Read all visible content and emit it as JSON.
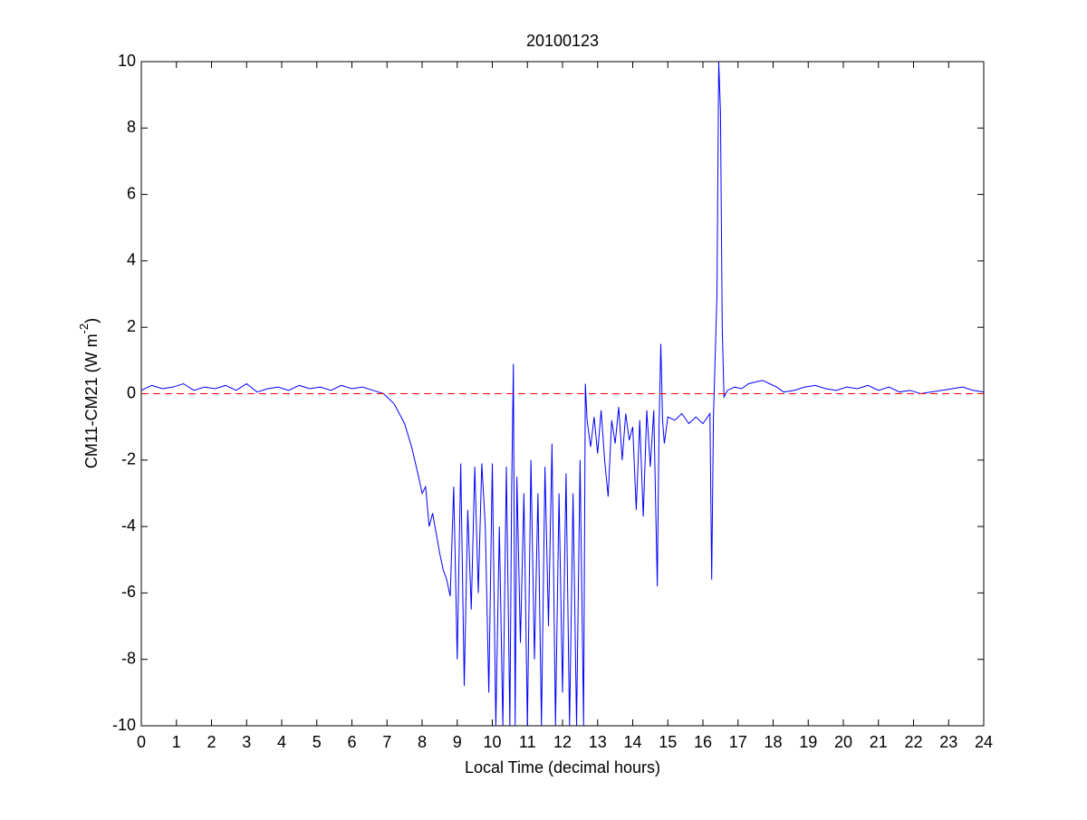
{
  "chart_data": {
    "type": "line",
    "title": "20100123",
    "xlabel": "Local Time (decimal hours)",
    "ylabel": [
      "CM11-CM21 (W m",
      "-2",
      ")"
    ],
    "xlim": [
      0,
      24
    ],
    "ylim": [
      -10,
      10
    ],
    "xticks": [
      0,
      1,
      2,
      3,
      4,
      5,
      6,
      7,
      8,
      9,
      10,
      11,
      12,
      13,
      14,
      15,
      16,
      17,
      18,
      19,
      20,
      21,
      22,
      23,
      24
    ],
    "yticks": [
      -10,
      -8,
      -6,
      -4,
      -2,
      0,
      2,
      4,
      6,
      8,
      10
    ],
    "reference_line": {
      "y": 0,
      "color": "#ff0000"
    },
    "series": [
      {
        "color": "#0000ff",
        "x": [
          0,
          0.3,
          0.6,
          0.9,
          1.2,
          1.5,
          1.8,
          2.1,
          2.4,
          2.7,
          3.0,
          3.3,
          3.6,
          3.9,
          4.2,
          4.5,
          4.8,
          5.1,
          5.4,
          5.7,
          6.0,
          6.3,
          6.6,
          6.9,
          7.2,
          7.5,
          7.7,
          7.9,
          8.0,
          8.1,
          8.2,
          8.3,
          8.4,
          8.5,
          8.6,
          8.7,
          8.8,
          8.9,
          9.0,
          9.1,
          9.2,
          9.3,
          9.4,
          9.5,
          9.6,
          9.7,
          9.8,
          9.9,
          10.0,
          10.1,
          10.2,
          10.3,
          10.4,
          10.5,
          10.55,
          10.6,
          10.65,
          10.7,
          10.8,
          10.9,
          11.0,
          11.1,
          11.2,
          11.3,
          11.4,
          11.5,
          11.6,
          11.7,
          11.8,
          11.9,
          12.0,
          12.1,
          12.2,
          12.3,
          12.4,
          12.5,
          12.6,
          12.65,
          12.7,
          12.8,
          12.9,
          13.0,
          13.1,
          13.2,
          13.3,
          13.4,
          13.5,
          13.6,
          13.7,
          13.8,
          13.9,
          14.0,
          14.1,
          14.2,
          14.3,
          14.4,
          14.5,
          14.6,
          14.7,
          14.75,
          14.8,
          14.85,
          14.9,
          15.0,
          15.2,
          15.4,
          15.6,
          15.8,
          16.0,
          16.2,
          16.25,
          16.3,
          16.4,
          16.45,
          16.5,
          16.55,
          16.6,
          16.7,
          16.9,
          17.1,
          17.3,
          17.5,
          17.7,
          17.9,
          18.1,
          18.3,
          18.6,
          18.9,
          19.2,
          19.5,
          19.8,
          20.1,
          20.4,
          20.7,
          21.0,
          21.3,
          21.6,
          21.9,
          22.2,
          22.5,
          22.8,
          23.1,
          23.4,
          23.7,
          24.0
        ],
        "values": [
          0.1,
          0.25,
          0.15,
          0.2,
          0.3,
          0.1,
          0.2,
          0.15,
          0.25,
          0.1,
          0.3,
          0.05,
          0.15,
          0.2,
          0.1,
          0.25,
          0.15,
          0.2,
          0.1,
          0.25,
          0.15,
          0.2,
          0.1,
          0.0,
          -0.3,
          -0.9,
          -1.6,
          -2.5,
          -3,
          -2.8,
          -4,
          -3.6,
          -4.2,
          -4.8,
          -5.3,
          -5.6,
          -6.1,
          -2.8,
          -8,
          -2.1,
          -8.8,
          -3.5,
          -6.5,
          -2.2,
          -6,
          -2.1,
          -4,
          -9,
          -2.1,
          -10,
          -4,
          -10,
          -2.2,
          -10,
          -3,
          0.9,
          -10,
          -2.5,
          -7.5,
          -3,
          -10,
          -2,
          -8,
          -3,
          -10,
          -2.2,
          -7,
          -1.5,
          -10,
          -3,
          -9,
          -2.4,
          -10,
          -3,
          -10,
          -2,
          -10,
          0.3,
          -0.8,
          -1.6,
          -0.7,
          -1.8,
          -0.5,
          -2,
          -3.1,
          -0.8,
          -1.5,
          -0.4,
          -2,
          -0.6,
          -1.4,
          -1,
          -3.5,
          -0.8,
          -3.7,
          -0.5,
          -2.2,
          -0.5,
          -5.8,
          -1,
          1.5,
          -0.8,
          -1.5,
          -0.7,
          -0.8,
          -0.6,
          -0.9,
          -0.7,
          -0.9,
          -0.6,
          -5.6,
          -0.7,
          3,
          10,
          8.5,
          2,
          -0.1,
          0.1,
          0.2,
          0.15,
          0.3,
          0.35,
          0.4,
          0.3,
          0.2,
          0.05,
          0.1,
          0.2,
          0.25,
          0.15,
          0.1,
          0.2,
          0.15,
          0.25,
          0.1,
          0.2,
          0.05,
          0.1,
          0.0,
          0.05,
          0.1,
          0.15,
          0.2,
          0.1,
          0.05
        ]
      }
    ]
  }
}
